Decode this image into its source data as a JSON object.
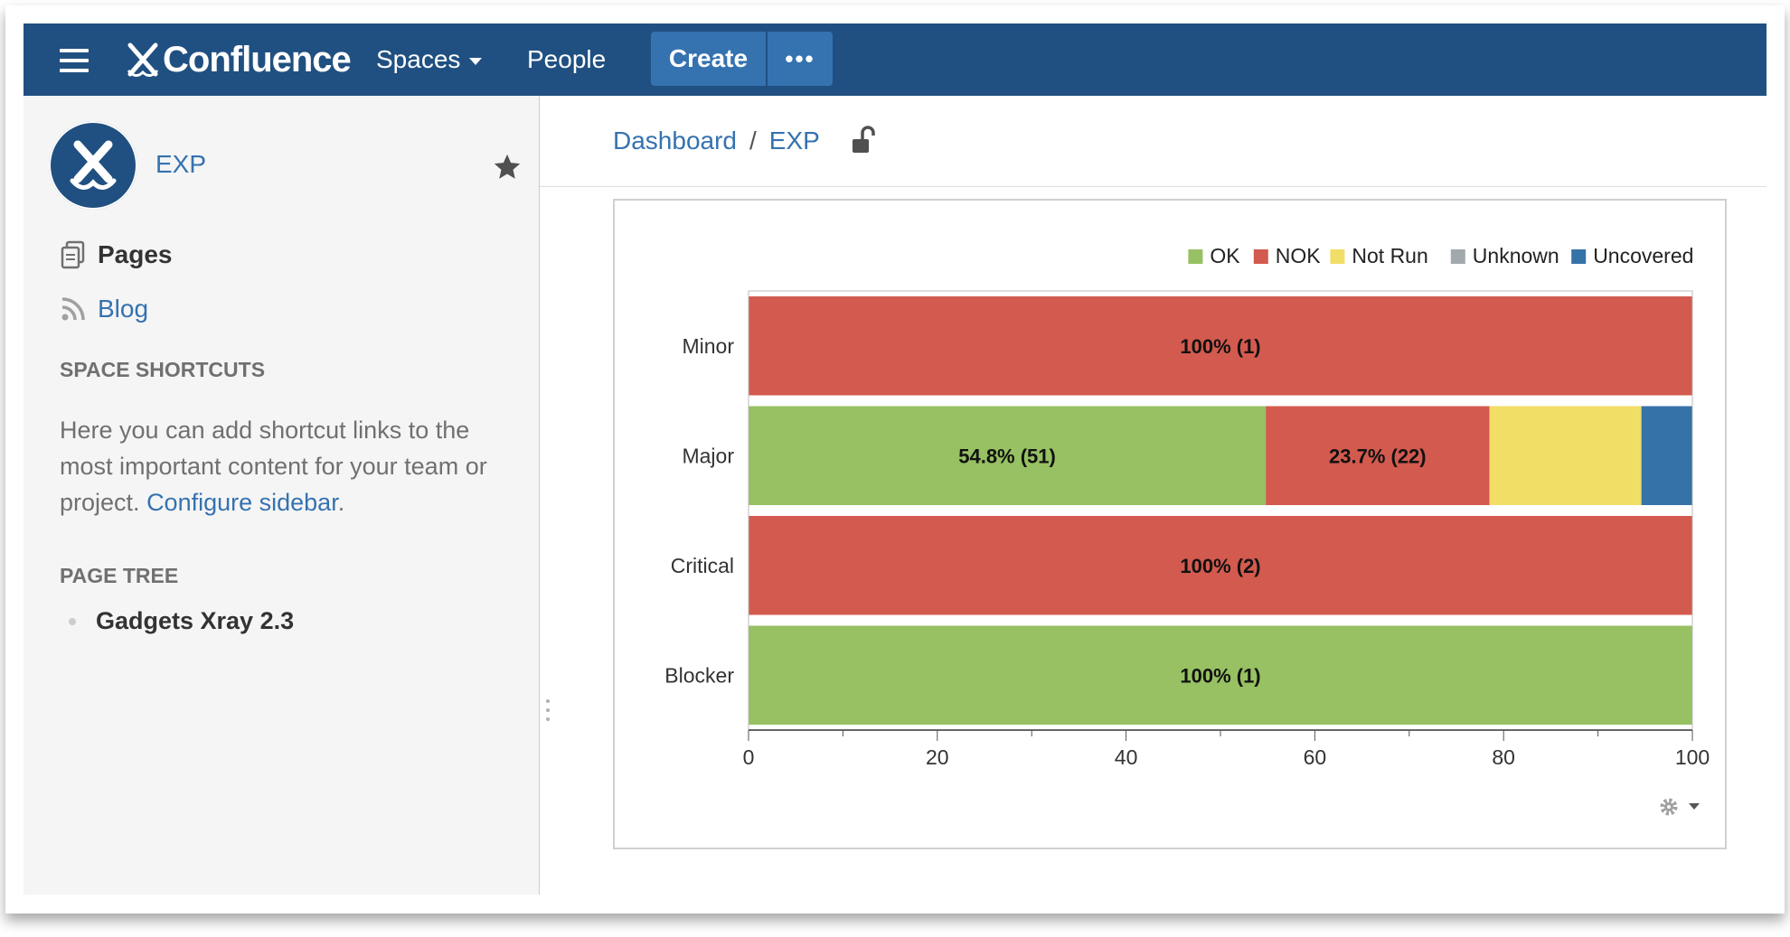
{
  "topbar": {
    "app_name": "Confluence",
    "nav": {
      "spaces_label": "Spaces",
      "people_label": "People"
    },
    "create_label": "Create",
    "more_label": "•••"
  },
  "sidebar": {
    "space_name": "EXP",
    "pages_label": "Pages",
    "blog_label": "Blog",
    "shortcuts_heading": "SPACE SHORTCUTS",
    "shortcuts_text": "Here you can add shortcut links to the most important content for your team or project.",
    "configure_link": "Configure sidebar",
    "shortcuts_end": ".",
    "tree_heading": "PAGE TREE",
    "tree_items": [
      "Gadgets Xray 2.3"
    ]
  },
  "breadcrumb": {
    "items": [
      "Dashboard",
      "EXP"
    ],
    "separator": "/"
  },
  "colors": {
    "topbar": "#205081",
    "link": "#3572b0",
    "ok": "#97c162",
    "nok": "#d35a4e",
    "not_run": "#f1de67",
    "unknown": "#a2a9ad",
    "uncovered": "#3572a8"
  },
  "chart_data": {
    "type": "bar",
    "orientation": "horizontal",
    "stacked": true,
    "categories": [
      "Minor",
      "Major",
      "Critical",
      "Blocker"
    ],
    "series": [
      {
        "name": "OK",
        "color": "#97c162",
        "values": [
          0,
          54.8,
          0,
          100
        ]
      },
      {
        "name": "NOK",
        "color": "#d35a4e",
        "values": [
          100,
          23.7,
          100,
          0
        ]
      },
      {
        "name": "Not Run",
        "color": "#f1de67",
        "values": [
          0,
          16.1,
          0,
          0
        ]
      },
      {
        "name": "Unknown",
        "color": "#a2a9ad",
        "values": [
          0,
          0,
          0,
          0
        ]
      },
      {
        "name": "Uncovered",
        "color": "#3572a8",
        "values": [
          0,
          5.4,
          0,
          0
        ]
      }
    ],
    "data_labels": [
      {
        "category": "Minor",
        "series": "NOK",
        "text": "100% (1)"
      },
      {
        "category": "Major",
        "series": "OK",
        "text": "54.8% (51)"
      },
      {
        "category": "Major",
        "series": "NOK",
        "text": "23.7% (22)"
      },
      {
        "category": "Critical",
        "series": "NOK",
        "text": "100% (2)"
      },
      {
        "category": "Blocker",
        "series": "OK",
        "text": "100% (1)"
      }
    ],
    "xlim": [
      0,
      100
    ],
    "xticks": [
      0,
      20,
      40,
      60,
      80,
      100
    ],
    "legend_position": "top-right",
    "grid": false
  }
}
